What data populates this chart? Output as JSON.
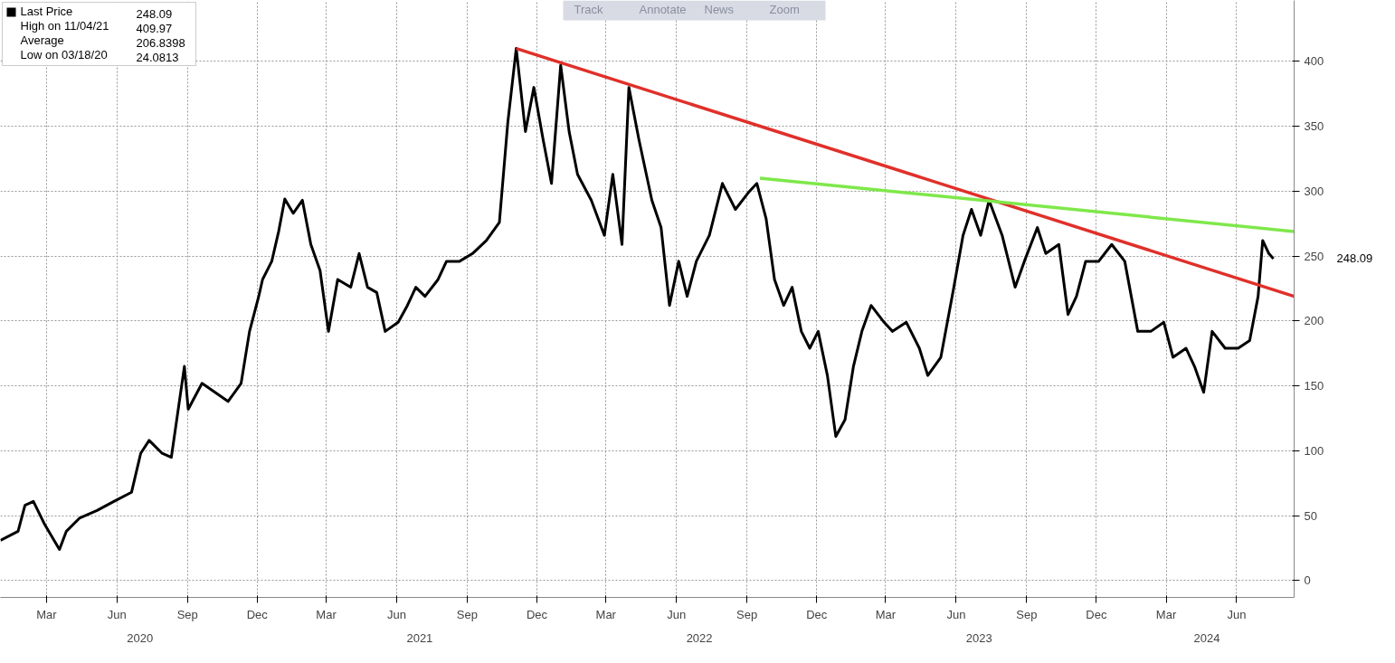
{
  "chart_data": {
    "type": "line",
    "xlim": [
      "2020-01-01",
      "2024-08-15"
    ],
    "ylim": [
      -13,
      447
    ],
    "yticks": [
      0,
      50,
      100,
      150,
      200,
      250,
      300,
      350,
      400
    ],
    "xticks": [
      {
        "value": "2020-03-01",
        "label": "Mar"
      },
      {
        "value": "2020-06-01",
        "label": "Jun"
      },
      {
        "value": "2020-09-01",
        "label": "Sep"
      },
      {
        "value": "2020-12-01",
        "label": "Dec"
      },
      {
        "value": "2021-03-01",
        "label": "Mar"
      },
      {
        "value": "2021-06-01",
        "label": "Jun"
      },
      {
        "value": "2021-09-01",
        "label": "Sep"
      },
      {
        "value": "2021-12-01",
        "label": "Dec"
      },
      {
        "value": "2022-03-01",
        "label": "Mar"
      },
      {
        "value": "2022-06-01",
        "label": "Jun"
      },
      {
        "value": "2022-09-01",
        "label": "Sep"
      },
      {
        "value": "2022-12-01",
        "label": "Dec"
      },
      {
        "value": "2023-03-01",
        "label": "Mar"
      },
      {
        "value": "2023-06-01",
        "label": "Jun"
      },
      {
        "value": "2023-09-01",
        "label": "Sep"
      },
      {
        "value": "2023-12-01",
        "label": "Dec"
      },
      {
        "value": "2024-03-01",
        "label": "Mar"
      },
      {
        "value": "2024-06-01",
        "label": "Jun"
      }
    ],
    "x2lim": [
      "2020-01-01",
      "2024-08-15"
    ],
    "x2ticks": [
      {
        "value": "2020-07-01",
        "label": "2020"
      },
      {
        "value": "2021-07-01",
        "label": "2021"
      },
      {
        "value": "2022-07-01",
        "label": "2022"
      },
      {
        "value": "2023-07-01",
        "label": "2023"
      },
      {
        "value": "2024-04-23",
        "label": "2024"
      }
    ],
    "grid": true,
    "legend": "top left",
    "line_style": "solid",
    "series": [
      {
        "name": "Last Price",
        "color": "#000000",
        "x": [
          "2020-01-01",
          "2020-01-24",
          "2020-02-02",
          "2020-02-13",
          "2020-02-27",
          "2020-03-18",
          "2020-03-27",
          "2020-04-13",
          "2020-05-06",
          "2020-05-28",
          "2020-06-20",
          "2020-07-02",
          "2020-07-13",
          "2020-07-30",
          "2020-08-11",
          "2020-08-28",
          "2020-09-02",
          "2020-09-20",
          "2020-10-07",
          "2020-10-24",
          "2020-11-10",
          "2020-11-21",
          "2020-12-03",
          "2020-12-08",
          "2020-12-20",
          "2020-12-29",
          "2021-01-06",
          "2021-01-17",
          "2021-01-29",
          "2021-02-09",
          "2021-02-21",
          "2021-03-04",
          "2021-03-16",
          "2021-04-02",
          "2021-04-13",
          "2021-04-24",
          "2021-05-06",
          "2021-05-17",
          "2021-06-03",
          "2021-06-15",
          "2021-06-26",
          "2021-07-08",
          "2021-07-25",
          "2021-08-05",
          "2021-08-22",
          "2021-09-08",
          "2021-09-26",
          "2021-10-13",
          "2021-10-24",
          "2021-11-04",
          "2021-11-16",
          "2021-11-27",
          "2021-12-09",
          "2021-12-20",
          "2022-01-01",
          "2022-01-12",
          "2022-01-23",
          "2022-02-10",
          "2022-02-27",
          "2022-03-10",
          "2022-03-22",
          "2022-03-31",
          "2022-04-13",
          "2022-04-30",
          "2022-05-12",
          "2022-05-23",
          "2022-06-04",
          "2022-06-15",
          "2022-06-27",
          "2022-07-14",
          "2022-07-31",
          "2022-08-17",
          "2022-09-03",
          "2022-09-14",
          "2022-09-26",
          "2022-10-07",
          "2022-10-19",
          "2022-10-30",
          "2022-11-11",
          "2022-11-22",
          "2022-12-03",
          "2022-12-15",
          "2022-12-26",
          "2023-01-07",
          "2023-01-18",
          "2023-01-29",
          "2023-02-10",
          "2023-02-27",
          "2023-03-10",
          "2023-03-28",
          "2023-04-14",
          "2023-04-25",
          "2023-05-12",
          "2023-05-29",
          "2023-06-10",
          "2023-06-21",
          "2023-07-03",
          "2023-07-14",
          "2023-07-31",
          "2023-08-17",
          "2023-08-29",
          "2023-09-15",
          "2023-09-26",
          "2023-10-13",
          "2023-10-25",
          "2023-11-05",
          "2023-11-17",
          "2023-12-04",
          "2023-12-21",
          "2024-01-07",
          "2024-01-24",
          "2024-02-10",
          "2024-02-27",
          "2024-03-10",
          "2024-03-27",
          "2024-04-07",
          "2024-04-19",
          "2024-04-30",
          "2024-05-17",
          "2024-06-03",
          "2024-06-18",
          "2024-06-29",
          "2024-07-05",
          "2024-07-13",
          "2024-07-19"
        ],
        "values": [
          31,
          38,
          58,
          61,
          44,
          24,
          38,
          48,
          54,
          61,
          68,
          98,
          108,
          98,
          95,
          165,
          132,
          152,
          145,
          138,
          152,
          192,
          219,
          232,
          246,
          269,
          294,
          283,
          293,
          259,
          239,
          192,
          232,
          226,
          252,
          226,
          222,
          192,
          199,
          212,
          226,
          219,
          232,
          246,
          246,
          252,
          262,
          276,
          353,
          410,
          346,
          380,
          340,
          306,
          397,
          346,
          313,
          293,
          266,
          313,
          259,
          380,
          340,
          293,
          272,
          212,
          246,
          219,
          246,
          266,
          306,
          286,
          299,
          306,
          279,
          232,
          212,
          226,
          192,
          179,
          192,
          158,
          111,
          124,
          165,
          192,
          212,
          199,
          192,
          199,
          179,
          158,
          172,
          226,
          266,
          286,
          266,
          293,
          266,
          226,
          246,
          272,
          252,
          259,
          205,
          219,
          246,
          246,
          259,
          246,
          192,
          192,
          199,
          172,
          179,
          165,
          145,
          192,
          179,
          179,
          185,
          219,
          262,
          252,
          248.09
        ]
      },
      {
        "color": "#e0302a",
        "x": [
          "2021-11-04",
          "2024-08-15"
        ],
        "values": [
          410,
          219
        ]
      },
      {
        "color": "#7ee84a",
        "x": [
          "2022-09-18",
          "2024-08-15"
        ],
        "values": [
          310,
          269
        ]
      }
    ],
    "annotations": [
      "248.09",
      "High on 11/04/21 409.97",
      "Average 206.8398",
      "Low on 03/18/20 24.0813",
      "248.09",
      "Track",
      "Annotate",
      "News",
      "Zoom"
    ]
  }
}
